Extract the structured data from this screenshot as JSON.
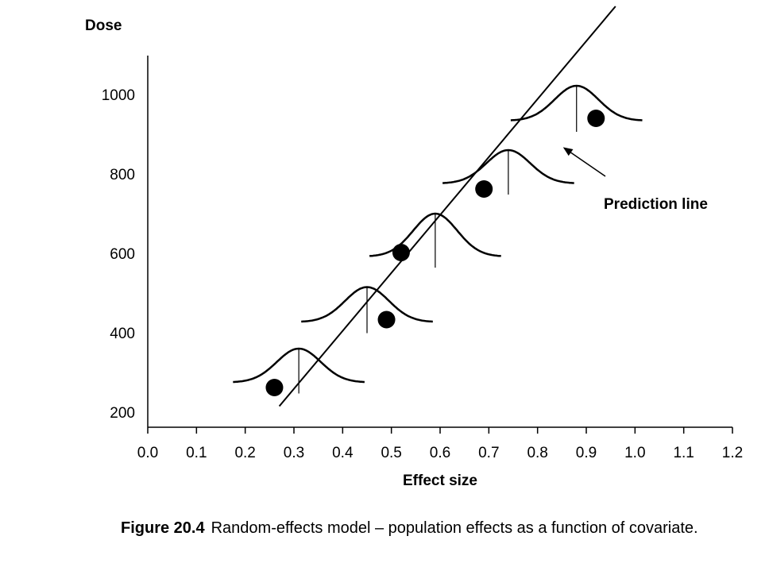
{
  "chart_data": {
    "type": "scatter",
    "ylabel": "Dose",
    "xlabel": "Effect size",
    "xlim": [
      0.0,
      1.2
    ],
    "ylim": [
      180,
      1100
    ],
    "x_ticks": [
      "0.0",
      "0.1",
      "0.2",
      "0.3",
      "0.4",
      "0.5",
      "0.6",
      "0.7",
      "0.8",
      "0.9",
      "1.0",
      "1.1",
      "1.2"
    ],
    "y_ticks": [
      "200",
      "400",
      "600",
      "800",
      "1000"
    ],
    "x_tick_values": [
      0.0,
      0.1,
      0.2,
      0.3,
      0.4,
      0.5,
      0.6,
      0.7,
      0.8,
      0.9,
      1.0,
      1.1,
      1.2
    ],
    "y_tick_values": [
      200,
      400,
      600,
      800,
      1000
    ],
    "points": [
      {
        "x": 0.26,
        "y": 262
      },
      {
        "x": 0.49,
        "y": 433
      },
      {
        "x": 0.52,
        "y": 602
      },
      {
        "x": 0.69,
        "y": 762
      },
      {
        "x": 0.92,
        "y": 940
      }
    ],
    "prediction_line": {
      "x1": 0.27,
      "y1": 215,
      "x2": 0.96,
      "y2": 1222
    },
    "distributions": [
      {
        "center_x": 0.31,
        "base_y": 275,
        "peak_y": 360,
        "sd": 0.045
      },
      {
        "center_x": 0.45,
        "base_y": 427,
        "peak_y": 515,
        "sd": 0.045
      },
      {
        "center_x": 0.59,
        "base_y": 592,
        "peak_y": 700,
        "sd": 0.045
      },
      {
        "center_x": 0.74,
        "base_y": 776,
        "peak_y": 860,
        "sd": 0.045
      },
      {
        "center_x": 0.88,
        "base_y": 934,
        "peak_y": 1022,
        "sd": 0.045
      }
    ],
    "annotation": {
      "text": "Prediction line",
      "arrow_to_x": 0.855,
      "arrow_to_y": 865
    },
    "grid": false,
    "legend": "none"
  },
  "caption": {
    "figure_number": "Figure 20.4",
    "text": "Random-effects model – population effects as a function of covariate."
  }
}
